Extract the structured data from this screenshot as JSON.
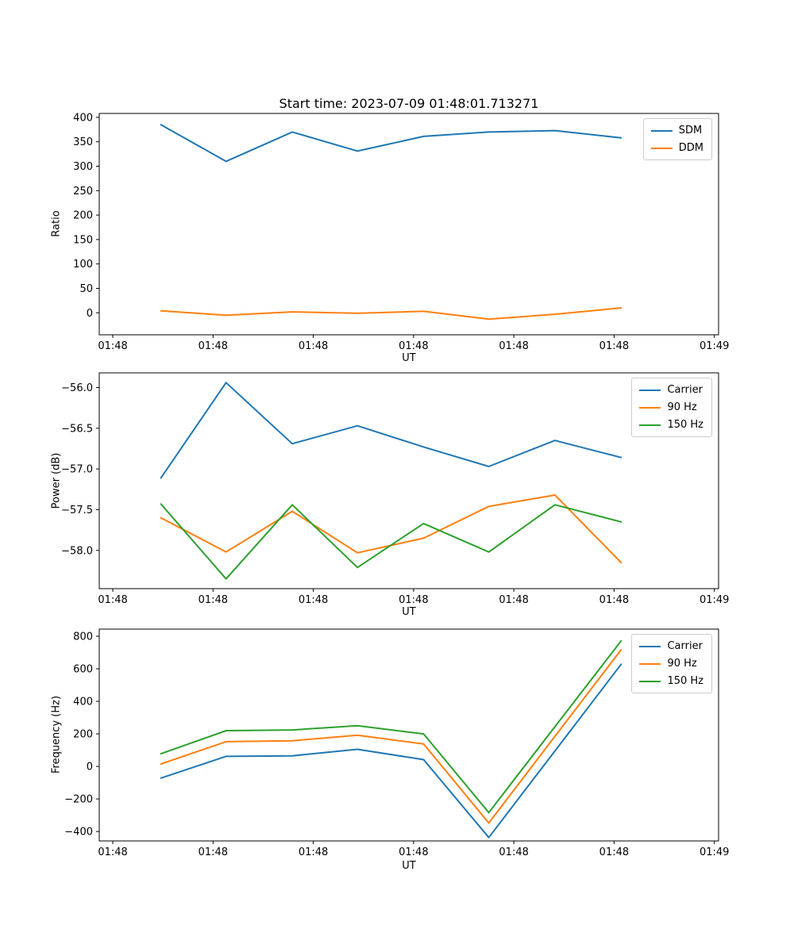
{
  "figure": {
    "title": "Start time: 2023-07-09 01:48:01.713271",
    "background": "#ffffff"
  },
  "colors": {
    "blue": "#1f77b4",
    "orange": "#ff7f0e",
    "green": "#2ca02c",
    "spine": "#000000",
    "legend_border": "#cccccc"
  },
  "chart_data": [
    {
      "type": "line",
      "title": "",
      "xlabel": "UT",
      "ylabel": "Ratio",
      "grid": false,
      "legend_position": "upper right",
      "x": [
        4.8,
        11.3,
        17.9,
        24.4,
        31.0,
        37.5,
        44.1,
        50.7
      ],
      "xlim": [
        -1.35,
        60.42
      ],
      "xticks": {
        "values": [
          0,
          10,
          20,
          30,
          40,
          50,
          60
        ],
        "labels": [
          "01:48",
          "01:48",
          "01:48",
          "01:48",
          "01:48",
          "01:48",
          "01:49"
        ]
      },
      "ylim": [
        -45,
        408
      ],
      "yticks": {
        "values": [
          0,
          50,
          100,
          150,
          200,
          250,
          300,
          350,
          400
        ],
        "labels": [
          "0",
          "50",
          "100",
          "150",
          "200",
          "250",
          "300",
          "350",
          "400"
        ]
      },
      "series": [
        {
          "name": "SDM",
          "color_key": "blue",
          "values": [
            385,
            310,
            370,
            331,
            361,
            370,
            373,
            358
          ]
        },
        {
          "name": "DDM",
          "color_key": "orange",
          "values": [
            4,
            -5,
            2,
            -1,
            3,
            -13,
            -3,
            10
          ]
        }
      ]
    },
    {
      "type": "line",
      "title": "",
      "xlabel": "UT",
      "ylabel": "Power (dB)",
      "grid": false,
      "legend_position": "upper right",
      "x": [
        4.8,
        11.3,
        17.9,
        24.4,
        31.0,
        37.5,
        44.1,
        50.7
      ],
      "xlim": [
        -1.35,
        60.42
      ],
      "xticks": {
        "values": [
          0,
          10,
          20,
          30,
          40,
          50,
          60
        ],
        "labels": [
          "01:48",
          "01:48",
          "01:48",
          "01:48",
          "01:48",
          "01:48",
          "01:49"
        ]
      },
      "ylim": [
        -58.47,
        -55.82
      ],
      "yticks": {
        "values": [
          -56.0,
          -56.5,
          -57.0,
          -57.5,
          -58.0
        ],
        "labels": [
          "−56.0",
          "−56.5",
          "−57.0",
          "−57.5",
          "−58.0"
        ]
      },
      "series": [
        {
          "name": "Carrier",
          "color_key": "blue",
          "values": [
            -57.11,
            -55.94,
            -56.69,
            -56.47,
            -56.73,
            -56.97,
            -56.65,
            -56.86
          ]
        },
        {
          "name": "90 Hz",
          "color_key": "orange",
          "values": [
            -57.6,
            -58.02,
            -57.52,
            -58.03,
            -57.85,
            -57.46,
            -57.32,
            -58.15
          ]
        },
        {
          "name": "150 Hz",
          "color_key": "green",
          "values": [
            -57.43,
            -58.35,
            -57.44,
            -58.21,
            -57.67,
            -58.02,
            -57.44,
            -57.65
          ]
        }
      ]
    },
    {
      "type": "line",
      "title": "",
      "xlabel": "UT",
      "ylabel": "Frequency (Hz)",
      "grid": false,
      "legend_position": "upper right",
      "x": [
        4.8,
        11.3,
        17.9,
        24.4,
        31.0,
        37.5,
        44.1,
        50.7
      ],
      "xlim": [
        -1.35,
        60.42
      ],
      "xticks": {
        "values": [
          0,
          10,
          20,
          30,
          40,
          50,
          60
        ],
        "labels": [
          "01:48",
          "01:48",
          "01:48",
          "01:48",
          "01:48",
          "01:48",
          "01:49"
        ]
      },
      "ylim": [
        -458,
        844
      ],
      "yticks": {
        "values": [
          800,
          600,
          400,
          200,
          0,
          -200,
          -400
        ],
        "labels": [
          "800",
          "600",
          "400",
          "200",
          "0",
          "−200",
          "−400"
        ]
      },
      "series": [
        {
          "name": "Carrier",
          "color_key": "blue",
          "values": [
            -72,
            62,
            65,
            105,
            42,
            -437,
            95,
            628
          ]
        },
        {
          "name": "90 Hz",
          "color_key": "orange",
          "values": [
            15,
            152,
            158,
            192,
            138,
            -348,
            185,
            717
          ]
        },
        {
          "name": "150 Hz",
          "color_key": "green",
          "values": [
            78,
            220,
            224,
            250,
            200,
            -284,
            244,
            772
          ]
        }
      ]
    }
  ]
}
